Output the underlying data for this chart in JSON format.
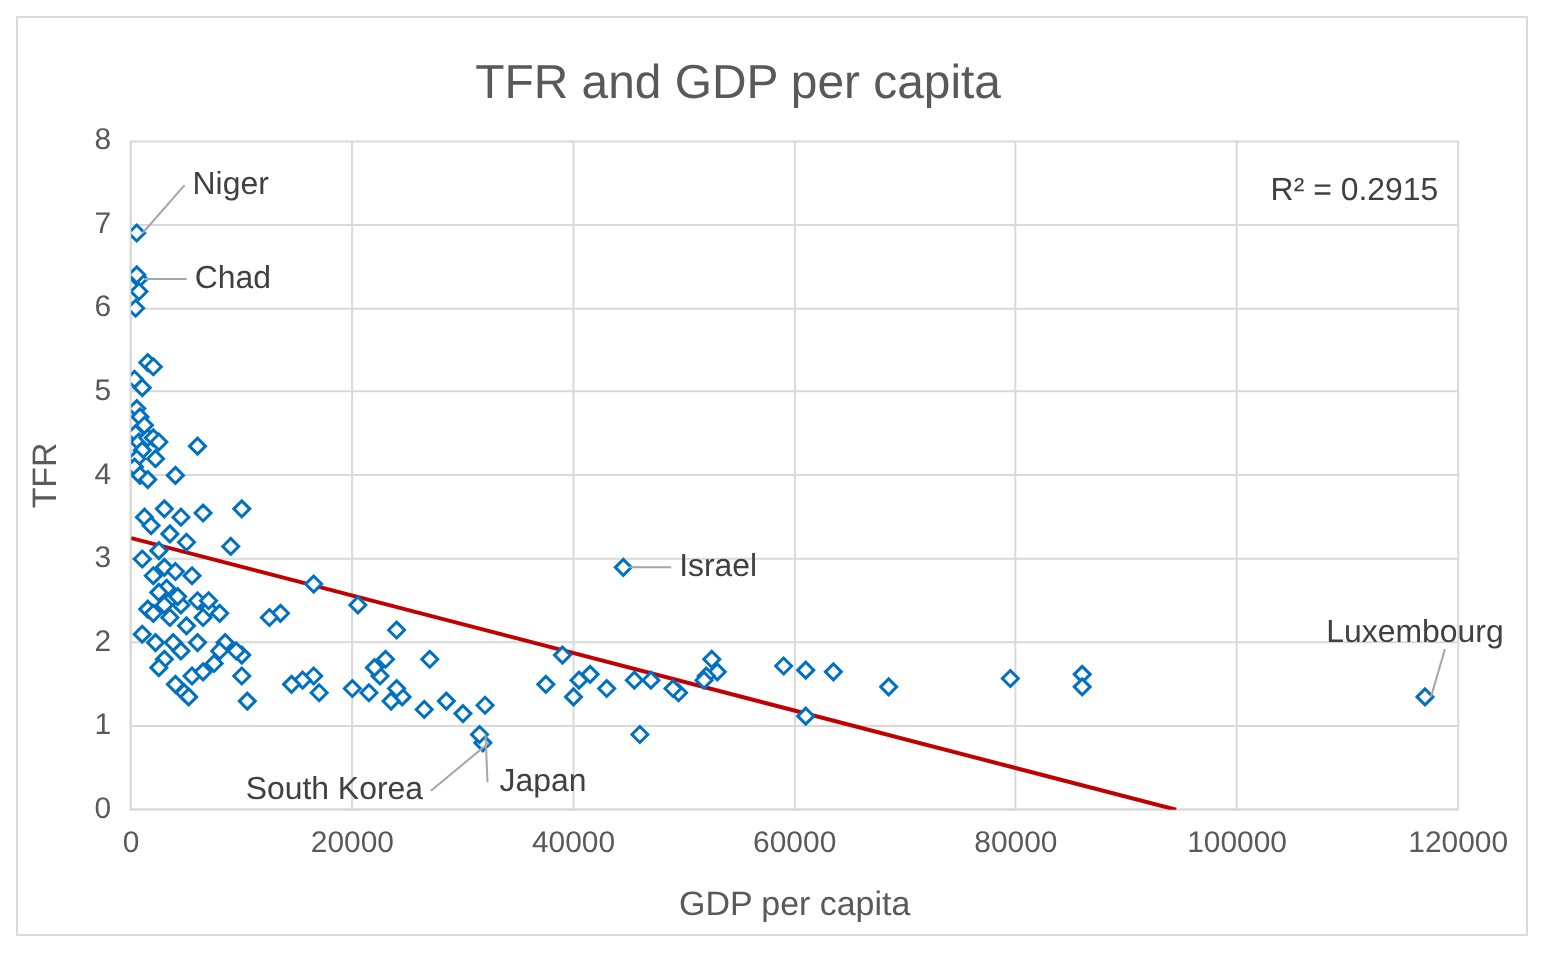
{
  "chart_data": {
    "type": "scatter",
    "title": "TFR and GDP per capita",
    "xlabel": "GDP per capita",
    "ylabel": "TFR",
    "xlim": [
      0,
      120000
    ],
    "xticks": [
      0,
      20000,
      40000,
      60000,
      80000,
      100000,
      120000
    ],
    "ylim": [
      0,
      8
    ],
    "yticks": [
      0,
      1,
      2,
      3,
      4,
      5,
      6,
      7,
      8
    ],
    "grid": true,
    "marker": "diamond",
    "series": [
      {
        "color": "#0070c0",
        "x": [
          117000,
          86000,
          86000,
          79500,
          68500,
          63500,
          61000,
          61000,
          59000,
          53000,
          52500,
          52000,
          51800,
          49500,
          49000,
          47000,
          46000,
          45500,
          44500,
          43000,
          41500,
          40500,
          40000,
          39000,
          37500,
          32000,
          31800,
          31500,
          30000,
          28500,
          27000,
          26500,
          24500,
          24000,
          24000,
          23500,
          23000,
          22500,
          22000,
          21500,
          20500,
          20000,
          17000,
          16500,
          16500,
          15500,
          14500,
          13500,
          12500,
          10500,
          10000,
          10000,
          10000,
          9500,
          9000,
          8500,
          8000,
          6500,
          6000,
          500,
          700,
          500,
          700,
          400,
          300,
          1500,
          2000,
          1000,
          500,
          800,
          1200,
          400,
          700,
          1000,
          500,
          300,
          800,
          1500,
          2000,
          2500,
          2200,
          1500,
          3000,
          1200,
          4000,
          4500,
          3500,
          5000,
          1800,
          2500,
          1000,
          3000,
          4000,
          2000,
          3200,
          5500,
          2500,
          6000,
          7000,
          4500,
          1500,
          3500,
          5000,
          6500,
          1000,
          2200,
          3800,
          4500,
          6000,
          3000,
          7500,
          5500,
          6500,
          4000,
          2500,
          4800,
          5200,
          7000,
          8000,
          2000,
          3000,
          4200
        ],
        "values": [
          1.35,
          1.62,
          1.47,
          1.57,
          1.47,
          1.65,
          1.67,
          1.12,
          1.72,
          1.65,
          1.8,
          1.6,
          1.55,
          1.4,
          1.45,
          1.55,
          0.9,
          1.55,
          2.9,
          1.45,
          1.62,
          1.55,
          1.35,
          1.85,
          1.5,
          1.25,
          0.8,
          0.9,
          1.15,
          1.3,
          1.8,
          1.2,
          1.35,
          2.15,
          1.45,
          1.3,
          1.8,
          1.6,
          1.7,
          1.4,
          2.45,
          1.45,
          1.4,
          2.7,
          1.6,
          1.55,
          1.5,
          2.35,
          2.3,
          1.3,
          1.85,
          1.6,
          3.6,
          1.9,
          3.15,
          2.0,
          1.9,
          3.55,
          4.35,
          6.9,
          6.35,
          6.4,
          6.2,
          6.0,
          5.15,
          5.35,
          5.3,
          5.05,
          4.8,
          4.7,
          4.6,
          4.5,
          4.4,
          4.3,
          4.2,
          4.1,
          4.0,
          4.45,
          4.45,
          4.4,
          4.2,
          3.95,
          3.6,
          3.5,
          4.0,
          3.5,
          3.3,
          3.2,
          3.4,
          3.1,
          3.0,
          2.9,
          2.85,
          2.8,
          2.65,
          2.8,
          2.6,
          2.5,
          2.4,
          2.45,
          2.4,
          2.3,
          2.2,
          2.3,
          2.1,
          2.0,
          2.0,
          1.9,
          2.0,
          1.8,
          1.75,
          1.6,
          1.65,
          1.5,
          1.7,
          1.4,
          1.35,
          2.5,
          2.35,
          2.35,
          2.45,
          2.55
        ]
      },
      {
        "color": "#c00000",
        "type": "line",
        "marker": "none",
        "x": [
          0,
          94500
        ],
        "values": [
          3.25,
          0
        ]
      }
    ],
    "annotations": [
      {
        "text": "Niger",
        "x": 500,
        "y": 6.9
      },
      {
        "text": "Chad",
        "x": 700,
        "y": 6.35
      },
      {
        "text": "Israel",
        "x": 44500,
        "y": 2.9
      },
      {
        "text": "South Korea",
        "x": 31800,
        "y": 0.8
      },
      {
        "text": "Japan",
        "x": 31500,
        "y": 0.9
      },
      {
        "text": "Luxembourg",
        "x": 117000,
        "y": 1.35
      },
      "R² = 0.2915"
    ]
  }
}
